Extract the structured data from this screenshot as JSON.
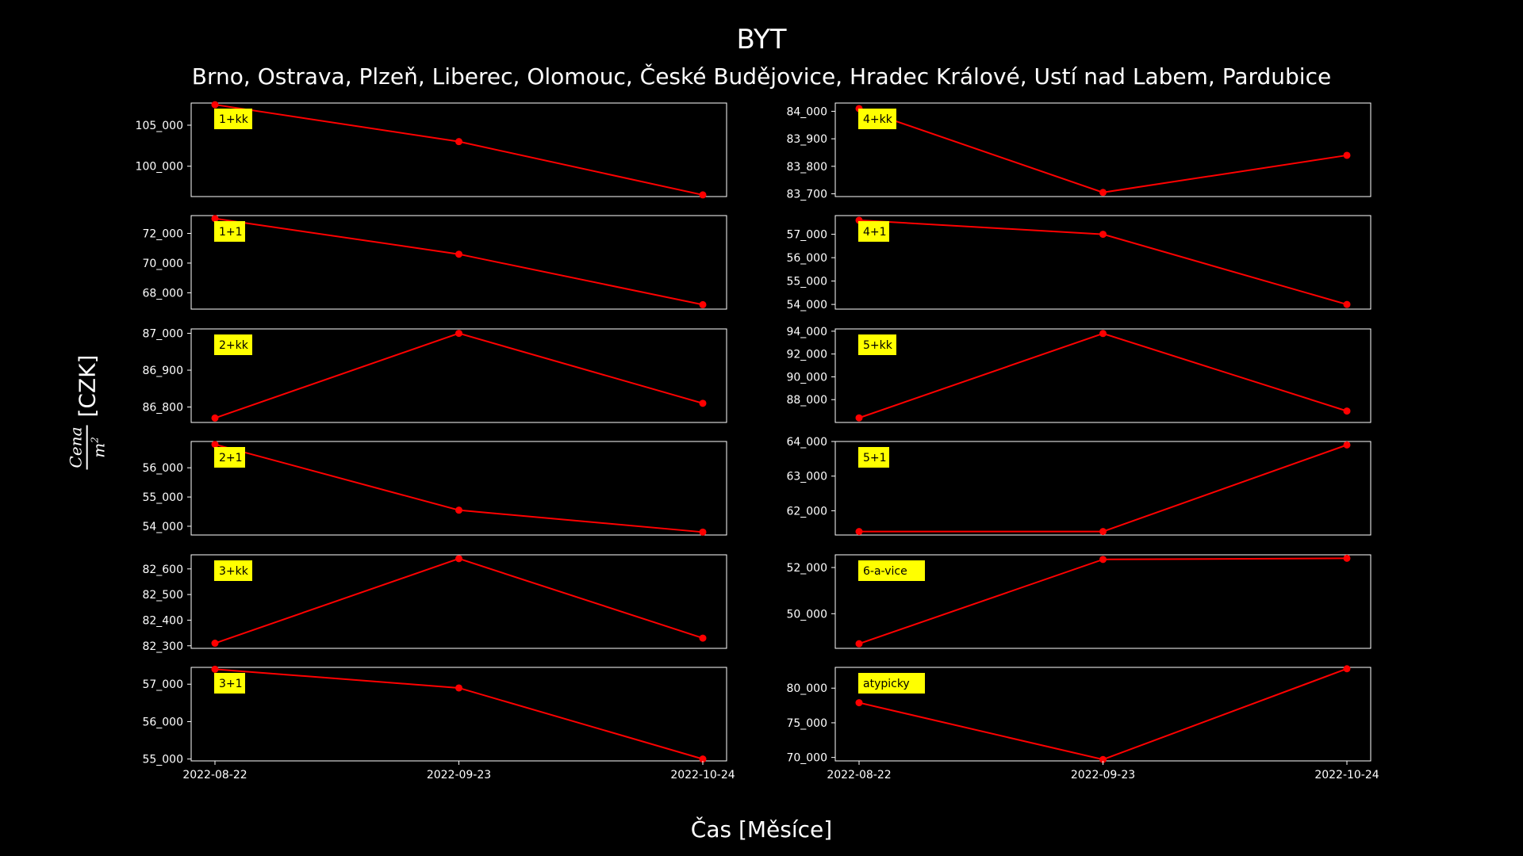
{
  "header": {
    "title": "BYT",
    "subtitle": "Brno, Ostrava, Plzeň, Liberec, Olomouc, České Budějovice, Hradec Králové, Ustí nad Labem, Pardubice"
  },
  "axes": {
    "xlabel": "Čas [Měsíce]",
    "ylabel_num": "Cena",
    "ylabel_den": "m",
    "ylabel_sup": "2",
    "ylabel_unit": "[CZK]"
  },
  "colors": {
    "line": "#ff0000",
    "badge": "#ffff00",
    "frame": "#ffffff",
    "background": "#000000"
  },
  "chart_data": [
    {
      "type": "line",
      "label": "1+kk",
      "x": [
        "2022-08-22",
        "2022-09-23",
        "2022-10-24"
      ],
      "values": [
        107500,
        103000,
        96500
      ],
      "ylim": [
        96300,
        107700
      ],
      "yticks": [
        100000,
        105000
      ],
      "ytick_labels": [
        "100_000",
        "105_000"
      ]
    },
    {
      "type": "line",
      "label": "4+kk",
      "x": [
        "2022-08-22",
        "2022-09-23",
        "2022-10-24"
      ],
      "values": [
        84010,
        83705,
        83840
      ],
      "ylim": [
        83690,
        84030
      ],
      "yticks": [
        83700,
        83800,
        83900,
        84000
      ],
      "ytick_labels": [
        "83_700",
        "83_800",
        "83_900",
        "84_000"
      ]
    },
    {
      "type": "line",
      "label": "1+1",
      "x": [
        "2022-08-22",
        "2022-09-23",
        "2022-10-24"
      ],
      "values": [
        73000,
        70600,
        67200
      ],
      "ylim": [
        66900,
        73200
      ],
      "yticks": [
        68000,
        70000,
        72000
      ],
      "ytick_labels": [
        "68_000",
        "70_000",
        "72_000"
      ]
    },
    {
      "type": "line",
      "label": "4+1",
      "x": [
        "2022-08-22",
        "2022-09-23",
        "2022-10-24"
      ],
      "values": [
        57600,
        57000,
        54000
      ],
      "ylim": [
        53800,
        57800
      ],
      "yticks": [
        54000,
        55000,
        56000,
        57000
      ],
      "ytick_labels": [
        "54_000",
        "55_000",
        "56_000",
        "57_000"
      ]
    },
    {
      "type": "line",
      "label": "2+kk",
      "x": [
        "2022-08-22",
        "2022-09-23",
        "2022-10-24"
      ],
      "values": [
        86770,
        87000,
        86810
      ],
      "ylim": [
        86758,
        87012
      ],
      "yticks": [
        86800,
        86900,
        87000
      ],
      "ytick_labels": [
        "86_800",
        "86_900",
        "87_000"
      ]
    },
    {
      "type": "line",
      "label": "5+kk",
      "x": [
        "2022-08-22",
        "2022-09-23",
        "2022-10-24"
      ],
      "values": [
        86400,
        93800,
        87000
      ],
      "ylim": [
        86000,
        94200
      ],
      "yticks": [
        88000,
        90000,
        92000,
        94000
      ],
      "ytick_labels": [
        "88_000",
        "90_000",
        "92_000",
        "94_000"
      ]
    },
    {
      "type": "line",
      "label": "2+1",
      "x": [
        "2022-08-22",
        "2022-09-23",
        "2022-10-24"
      ],
      "values": [
        56800,
        54550,
        53800
      ],
      "ylim": [
        53700,
        56900
      ],
      "yticks": [
        54000,
        55000,
        56000
      ],
      "ytick_labels": [
        "54_000",
        "55_000",
        "56_000"
      ]
    },
    {
      "type": "line",
      "label": "5+1",
      "x": [
        "2022-08-22",
        "2022-09-23",
        "2022-10-24"
      ],
      "values": [
        61400,
        61400,
        63900
      ],
      "ylim": [
        61300,
        64000
      ],
      "yticks": [
        62000,
        63000,
        64000
      ],
      "ytick_labels": [
        "62_000",
        "63_000",
        "64_000"
      ]
    },
    {
      "type": "line",
      "label": "3+kk",
      "x": [
        "2022-08-22",
        "2022-09-23",
        "2022-10-24"
      ],
      "values": [
        82310,
        82640,
        82330
      ],
      "ylim": [
        82290,
        82655
      ],
      "yticks": [
        82300,
        82400,
        82500,
        82600
      ],
      "ytick_labels": [
        "82_300",
        "82_400",
        "82_500",
        "82_600"
      ]
    },
    {
      "type": "line",
      "label": "6-a-vice",
      "x": [
        "2022-08-22",
        "2022-09-23",
        "2022-10-24"
      ],
      "values": [
        48700,
        52350,
        52400
      ],
      "ylim": [
        48500,
        52550
      ],
      "yticks": [
        50000,
        52000
      ],
      "ytick_labels": [
        "50_000",
        "52_000"
      ]
    },
    {
      "type": "line",
      "label": "3+1",
      "x": [
        "2022-08-22",
        "2022-09-23",
        "2022-10-24"
      ],
      "values": [
        57400,
        56900,
        55000
      ],
      "ylim": [
        54950,
        57450
      ],
      "yticks": [
        55000,
        56000,
        57000
      ],
      "ytick_labels": [
        "55_000",
        "56_000",
        "57_000"
      ]
    },
    {
      "type": "line",
      "label": "atypicky",
      "x": [
        "2022-08-22",
        "2022-09-23",
        "2022-10-24"
      ],
      "values": [
        77900,
        69700,
        82800
      ],
      "ylim": [
        69500,
        83000
      ],
      "yticks": [
        70000,
        75000,
        80000
      ],
      "ytick_labels": [
        "70_000",
        "75_000",
        "80_000"
      ]
    }
  ]
}
